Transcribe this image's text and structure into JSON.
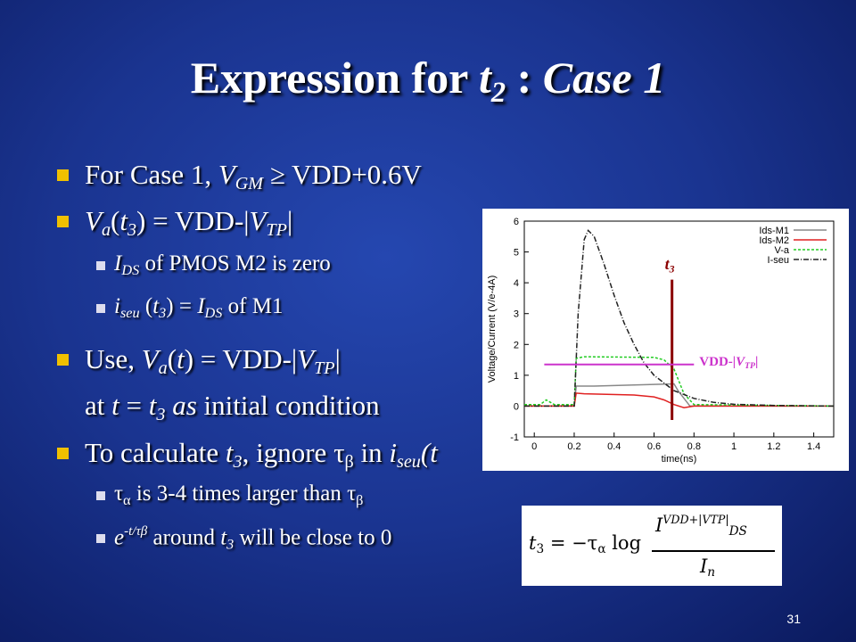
{
  "slide": {
    "title": [
      {
        "text": "Expression for ",
        "style": "n"
      },
      {
        "text": "t",
        "style": "i"
      },
      {
        "text": "2",
        "style": "isub"
      },
      {
        "text": " : ",
        "style": "n"
      },
      {
        "text": "Case 1",
        "style": "i"
      }
    ],
    "bullets": [
      {
        "level": 1,
        "runs": [
          {
            "text": "For Case 1, ",
            "style": "n"
          },
          {
            "text": "V",
            "style": "i"
          },
          {
            "text": "GM",
            "style": "isub"
          },
          {
            "text": " ≥ VDD+0.6V",
            "style": "n"
          }
        ]
      },
      {
        "level": 1,
        "runs": [
          {
            "text": "V",
            "style": "i"
          },
          {
            "text": "a",
            "style": "isub"
          },
          {
            "text": "(",
            "style": "n"
          },
          {
            "text": "t",
            "style": "i"
          },
          {
            "text": "3",
            "style": "isub"
          },
          {
            "text": ") = VDD-|",
            "style": "n"
          },
          {
            "text": "V",
            "style": "i"
          },
          {
            "text": "TP",
            "style": "isub"
          },
          {
            "text": "|",
            "style": "n"
          }
        ]
      },
      {
        "level": 2,
        "runs": [
          {
            "text": "I",
            "style": "i"
          },
          {
            "text": "DS",
            "style": "isub"
          },
          {
            "text": " of PMOS M2 is zero",
            "style": "n"
          }
        ]
      },
      {
        "level": 2,
        "runs": [
          {
            "text": "i",
            "style": "i"
          },
          {
            "text": "seu",
            "style": "isub"
          },
          {
            "text": " (",
            "style": "n"
          },
          {
            "text": "t",
            "style": "i"
          },
          {
            "text": "3",
            "style": "isub"
          },
          {
            "text": ") = ",
            "style": "n"
          },
          {
            "text": "I",
            "style": "i"
          },
          {
            "text": "DS",
            "style": "isub"
          },
          {
            "text": " of M1",
            "style": "n"
          }
        ]
      },
      {
        "level": 1,
        "runs": [
          {
            "text": "Use, ",
            "style": "n"
          },
          {
            "text": "V",
            "style": "i"
          },
          {
            "text": "a",
            "style": "isub"
          },
          {
            "text": "(",
            "style": "n"
          },
          {
            "text": "t",
            "style": "i"
          },
          {
            "text": ") = VDD-|",
            "style": "n"
          },
          {
            "text": "V",
            "style": "i"
          },
          {
            "text": "TP",
            "style": "isub"
          },
          {
            "text": "|",
            "style": "n"
          }
        ]
      },
      {
        "level": 0,
        "runs": [
          {
            "text": "at ",
            "style": "n"
          },
          {
            "text": "t",
            "style": "i"
          },
          {
            "text": " = ",
            "style": "n"
          },
          {
            "text": "t",
            "style": "i"
          },
          {
            "text": "3",
            "style": "isub"
          },
          {
            "text": " as",
            "style": "i"
          },
          {
            "text": " initial condition",
            "style": "n"
          }
        ]
      },
      {
        "level": 1,
        "runs": [
          {
            "text": "To calculate ",
            "style": "n"
          },
          {
            "text": "t",
            "style": "i"
          },
          {
            "text": "3",
            "style": "isub"
          },
          {
            "text": ", ignore ",
            "style": "n"
          },
          {
            "text": "τ",
            "style": "n"
          },
          {
            "text": "β",
            "style": "sub"
          },
          {
            "text": " in ",
            "style": "n"
          },
          {
            "text": "i",
            "style": "i"
          },
          {
            "text": "seu",
            "style": "isub"
          },
          {
            "text": "(t",
            "style": "i"
          }
        ]
      },
      {
        "level": 2,
        "runs": [
          {
            "text": "τ",
            "style": "n"
          },
          {
            "text": "α",
            "style": "sub"
          },
          {
            "text": " is 3-4 times larger than ",
            "style": "n"
          },
          {
            "text": "τ",
            "style": "n"
          },
          {
            "text": "β",
            "style": "sub"
          }
        ]
      },
      {
        "level": 2,
        "runs": [
          {
            "text": "e",
            "style": "i"
          },
          {
            "text": "-t/τβ",
            "style": "isup"
          },
          {
            "text": " around ",
            "style": "n"
          },
          {
            "text": "t",
            "style": "i"
          },
          {
            "text": "3",
            "style": "isub"
          },
          {
            "text": " will be close to 0",
            "style": "n"
          }
        ]
      }
    ],
    "formula": {
      "lhs": [
        {
          "text": "t",
          "style": "i"
        },
        {
          "text": "3",
          "style": "sub"
        },
        {
          "text": " = −τ",
          "style": "n"
        },
        {
          "text": "α",
          "style": "sub"
        },
        {
          "text": " log ",
          "style": "n"
        }
      ],
      "numerator": [
        {
          "text": "I",
          "style": "i"
        },
        {
          "text": "VDD+|V",
          "style": "isup"
        },
        {
          "text": "TP",
          "style": "isup"
        },
        {
          "text": "|",
          "style": "isup"
        },
        {
          "text": "DS",
          "style": "isub"
        }
      ],
      "denominator": [
        {
          "text": "I",
          "style": "i"
        },
        {
          "text": "n",
          "style": "isub"
        }
      ]
    },
    "page_number": "31",
    "plot": {
      "y_label": "Voltage/Current (V/e-4A)",
      "x_label": "time(ns)",
      "xlim": [
        -0.05,
        1.5
      ],
      "ylim": [
        -1,
        6
      ],
      "xticks": [
        0,
        0.2,
        0.4,
        0.6,
        0.8,
        1,
        1.2,
        1.4
      ],
      "yticks": [
        -1,
        0,
        1,
        2,
        3,
        4,
        5,
        6
      ],
      "series": [
        {
          "name": "Ids-M1",
          "color": "#888888",
          "dash": "",
          "x": [
            -0.05,
            0.2,
            0.21,
            0.3,
            0.7,
            0.72,
            0.78,
            1.5
          ],
          "values": [
            0,
            0,
            0.65,
            0.65,
            0.72,
            0.5,
            0,
            0
          ]
        },
        {
          "name": "Ids-M2",
          "color": "#e02020",
          "dash": "",
          "x": [
            -0.05,
            0.2,
            0.21,
            0.25,
            0.5,
            0.6,
            0.65,
            0.7,
            0.75,
            0.8,
            1.5
          ],
          "values": [
            0,
            0,
            0.42,
            0.4,
            0.36,
            0.3,
            0.2,
            0.05,
            -0.05,
            0,
            0
          ]
        },
        {
          "name": "V-a",
          "color": "#22cc22",
          "dash": "3,2",
          "x": [
            -0.05,
            0.03,
            0.06,
            0.1,
            0.2,
            0.21,
            0.25,
            0.6,
            0.65,
            0.7,
            0.75,
            0.8,
            1.5
          ],
          "values": [
            0.05,
            0.05,
            0.2,
            0.05,
            0.05,
            1.55,
            1.6,
            1.58,
            1.5,
            1.2,
            0.4,
            0.05,
            0
          ]
        },
        {
          "name": "I-seu",
          "color": "#222222",
          "dash": "6,2,1,2",
          "x": [
            -0.05,
            0.2,
            0.22,
            0.25,
            0.27,
            0.3,
            0.35,
            0.4,
            0.45,
            0.5,
            0.55,
            0.6,
            0.7,
            0.8,
            0.9,
            1,
            1.2,
            1.5
          ],
          "values": [
            0,
            0,
            3,
            5.4,
            5.7,
            5.5,
            4.6,
            3.6,
            2.7,
            2,
            1.4,
            1,
            0.5,
            0.25,
            0.12,
            0.06,
            0.02,
            0
          ]
        }
      ],
      "t3_marker": {
        "runs": [
          {
            "text": "t",
            "style": "i"
          },
          {
            "text": "3",
            "style": "isub"
          }
        ],
        "x": 0.69,
        "y_range": [
          -0.45,
          4.1
        ],
        "color": "#8b0000"
      },
      "vdd_marker": {
        "runs": [
          {
            "text": "VDD-|",
            "style": "n"
          },
          {
            "text": "V",
            "style": "i"
          },
          {
            "text": "TP",
            "style": "isub"
          },
          {
            "text": "|",
            "style": "n"
          }
        ],
        "y": 1.35,
        "x_range": [
          0.05,
          0.8
        ],
        "color": "#cc33cc"
      }
    }
  }
}
